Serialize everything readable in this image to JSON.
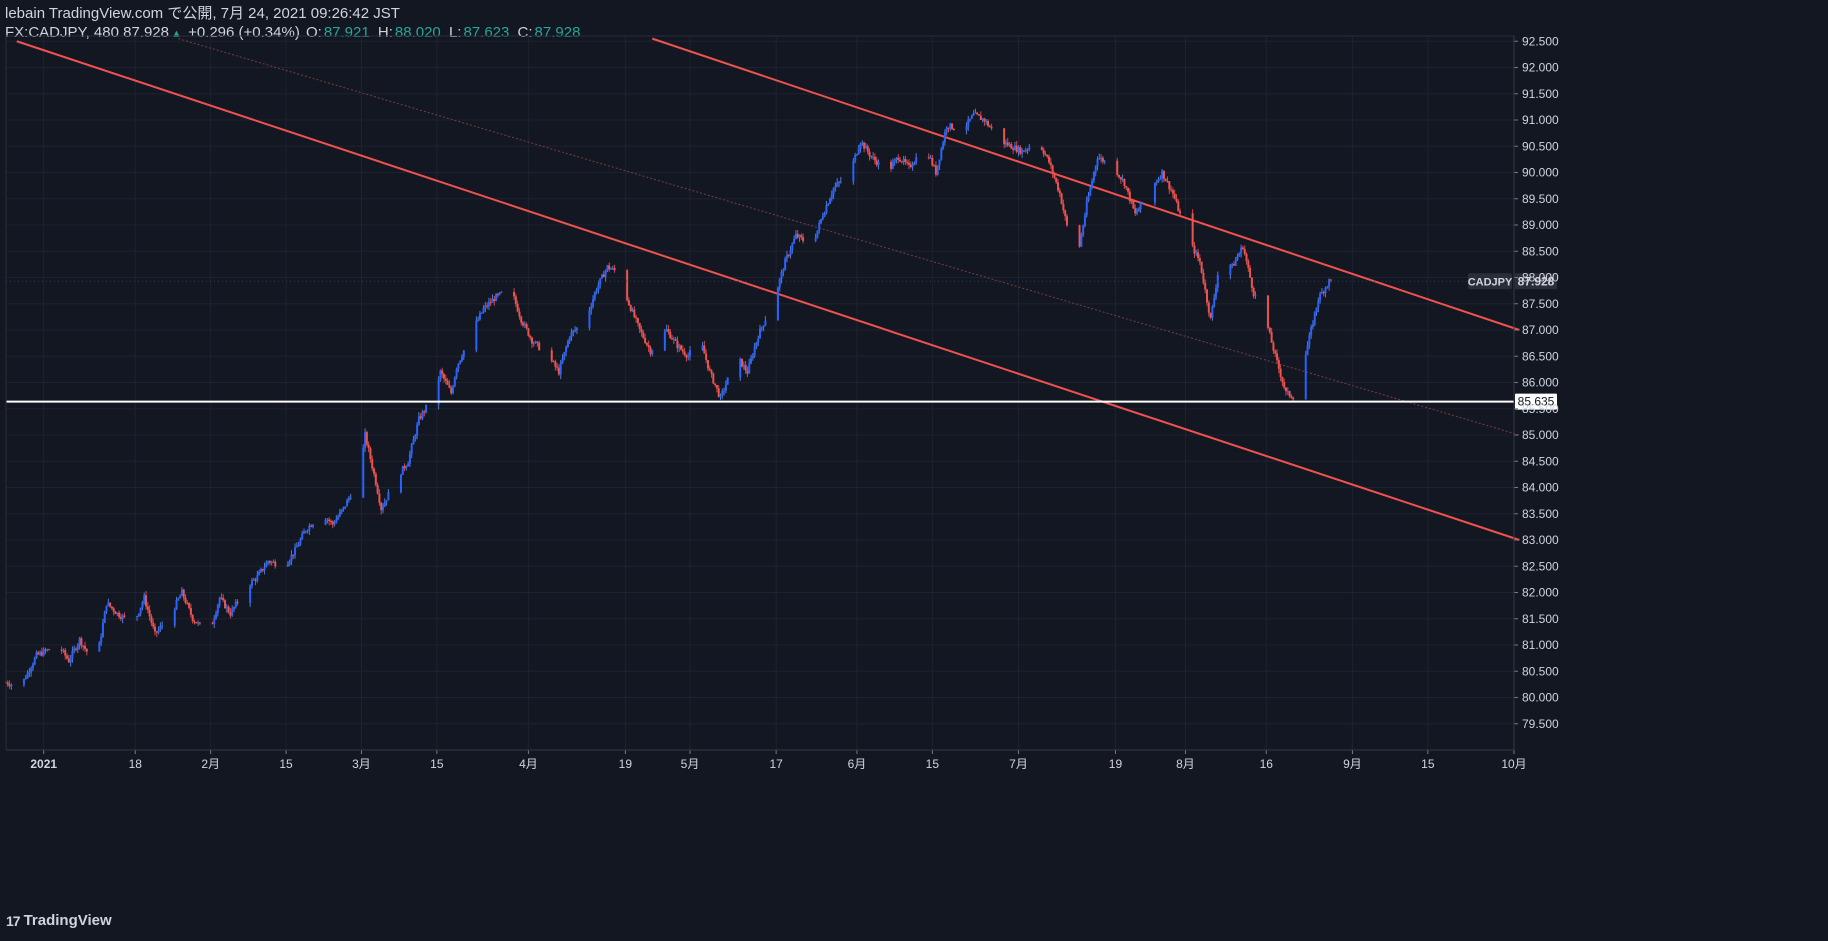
{
  "header": {
    "published_line": "lebain TradingView.com で公開, 7月 24, 2021 09:26:42 JST",
    "symbol_interval_price": "FX:CADJPY, 480 87.928",
    "change": "+0.296 (+0.34%)",
    "o_label": "O:",
    "o_value": "87.921",
    "h_label": "H:",
    "h_value": "88.020",
    "l_label": "L:",
    "l_value": "87.623",
    "c_label": "C:",
    "c_value": "87.928"
  },
  "footer": {
    "brand": "TradingView",
    "icon_text": "17"
  },
  "colors": {
    "background": "#131722",
    "up": "#2962ff",
    "up_wick": "#5b8def",
    "down": "#ef5350",
    "trendline": "#f0524f",
    "midline": "#7a3b45",
    "horizontal_line": "#ffffff",
    "grid": "#1e2230"
  },
  "chart_data": {
    "type": "candlestick",
    "symbol": "CADJPY",
    "interval": "480",
    "y_axis": {
      "range": [
        79.0,
        92.6
      ],
      "ticks": [
        "92.500",
        "92.000",
        "91.500",
        "91.000",
        "90.500",
        "90.000",
        "89.500",
        "89.000",
        "88.500",
        "88.000",
        "87.500",
        "87.000",
        "86.500",
        "86.000",
        "85.500",
        "85.000",
        "84.500",
        "84.000",
        "83.500",
        "83.000",
        "82.500",
        "82.000",
        "81.500",
        "81.000",
        "80.500",
        "80.000",
        "79.500"
      ]
    },
    "x_axis": {
      "range": [
        "2020-12-25",
        "2021-10-01"
      ],
      "ticks": [
        {
          "date": "2021-01-01",
          "label": "2021",
          "bold": true
        },
        {
          "date": "2021-01-18",
          "label": "18"
        },
        {
          "date": "2021-02-01",
          "label": "2月"
        },
        {
          "date": "2021-02-15",
          "label": "15"
        },
        {
          "date": "2021-03-01",
          "label": "3月"
        },
        {
          "date": "2021-03-15",
          "label": "15"
        },
        {
          "date": "2021-04-01",
          "label": "4月"
        },
        {
          "date": "2021-04-19",
          "label": "19"
        },
        {
          "date": "2021-05-01",
          "label": "5月"
        },
        {
          "date": "2021-05-17",
          "label": "17"
        },
        {
          "date": "2021-06-01",
          "label": "6月"
        },
        {
          "date": "2021-06-15",
          "label": "15"
        },
        {
          "date": "2021-07-01",
          "label": "7月"
        },
        {
          "date": "2021-07-19",
          "label": "19"
        },
        {
          "date": "2021-08-01",
          "label": "8月"
        },
        {
          "date": "2021-08-16",
          "label": "16"
        },
        {
          "date": "2021-09-01",
          "label": "9月"
        },
        {
          "date": "2021-09-15",
          "label": "15"
        },
        {
          "date": "2021-10-01",
          "label": "10月"
        }
      ]
    },
    "price_path": [
      [
        "2020-12-25",
        80.3
      ],
      [
        "2020-12-28",
        80.2
      ],
      [
        "2020-12-31",
        80.8
      ],
      [
        "2021-01-04",
        81.0
      ],
      [
        "2021-01-06",
        80.7
      ],
      [
        "2021-01-08",
        81.1
      ],
      [
        "2021-01-11",
        80.6
      ],
      [
        "2021-01-13",
        81.8
      ],
      [
        "2021-01-15",
        81.6
      ],
      [
        "2021-01-18",
        81.4
      ],
      [
        "2021-01-20",
        81.9
      ],
      [
        "2021-01-22",
        81.2
      ],
      [
        "2021-01-25",
        81.6
      ],
      [
        "2021-01-27",
        82.0
      ],
      [
        "2021-01-29",
        81.5
      ],
      [
        "2021-02-01",
        81.2
      ],
      [
        "2021-02-03",
        81.9
      ],
      [
        "2021-02-05",
        81.6
      ],
      [
        "2021-02-08",
        82.1
      ],
      [
        "2021-02-10",
        82.3
      ],
      [
        "2021-02-12",
        82.6
      ],
      [
        "2021-02-15",
        82.5
      ],
      [
        "2021-02-17",
        82.8
      ],
      [
        "2021-02-19",
        83.2
      ],
      [
        "2021-02-22",
        83.5
      ],
      [
        "2021-02-24",
        83.3
      ],
      [
        "2021-02-26",
        83.6
      ],
      [
        "2021-03-01",
        84.2
      ],
      [
        "2021-03-02",
        85.0
      ],
      [
        "2021-03-04",
        84.1
      ],
      [
        "2021-03-05",
        83.6
      ],
      [
        "2021-03-08",
        84.2
      ],
      [
        "2021-03-10",
        84.5
      ],
      [
        "2021-03-12",
        85.3
      ],
      [
        "2021-03-15",
        85.8
      ],
      [
        "2021-03-16",
        86.2
      ],
      [
        "2021-03-18",
        85.8
      ],
      [
        "2021-03-19",
        86.3
      ],
      [
        "2021-03-22",
        87.0
      ],
      [
        "2021-03-24",
        87.4
      ],
      [
        "2021-03-26",
        87.6
      ],
      [
        "2021-03-29",
        87.8
      ],
      [
        "2021-03-31",
        87.2
      ],
      [
        "2021-04-02",
        86.8
      ],
      [
        "2021-04-05",
        86.5
      ],
      [
        "2021-04-07",
        86.2
      ],
      [
        "2021-04-09",
        86.9
      ],
      [
        "2021-04-12",
        87.2
      ],
      [
        "2021-04-14",
        87.8
      ],
      [
        "2021-04-16",
        88.2
      ],
      [
        "2021-04-18",
        88.1
      ],
      [
        "2021-04-20",
        87.5
      ],
      [
        "2021-04-22",
        87.0
      ],
      [
        "2021-04-24",
        86.6
      ],
      [
        "2021-04-27",
        87.0
      ],
      [
        "2021-04-29",
        86.7
      ],
      [
        "2021-05-01",
        86.5
      ],
      [
        "2021-05-03",
        86.9
      ],
      [
        "2021-05-05",
        86.2
      ],
      [
        "2021-05-07",
        85.7
      ],
      [
        "2021-05-10",
        86.5
      ],
      [
        "2021-05-12",
        86.2
      ],
      [
        "2021-05-14",
        86.9
      ],
      [
        "2021-05-17",
        87.6
      ],
      [
        "2021-05-19",
        88.3
      ],
      [
        "2021-05-21",
        88.8
      ],
      [
        "2021-05-24",
        88.6
      ],
      [
        "2021-05-26",
        89.2
      ],
      [
        "2021-05-28",
        89.7
      ],
      [
        "2021-05-31",
        90.0
      ],
      [
        "2021-06-02",
        90.6
      ],
      [
        "2021-06-04",
        90.3
      ],
      [
        "2021-06-07",
        90.0
      ],
      [
        "2021-06-09",
        90.3
      ],
      [
        "2021-06-11",
        90.1
      ],
      [
        "2021-06-14",
        90.5
      ],
      [
        "2021-06-16",
        90.0
      ],
      [
        "2021-06-18",
        90.9
      ],
      [
        "2021-06-21",
        90.8
      ],
      [
        "2021-06-23",
        91.1
      ],
      [
        "2021-06-25",
        91.0
      ],
      [
        "2021-06-28",
        90.6
      ],
      [
        "2021-06-30",
        90.5
      ],
      [
        "2021-07-02",
        90.4
      ],
      [
        "2021-07-05",
        90.6
      ],
      [
        "2021-07-07",
        90.2
      ],
      [
        "2021-07-09",
        89.6
      ],
      [
        "2021-07-12",
        88.2
      ],
      [
        "2021-07-14",
        89.4
      ],
      [
        "2021-07-16",
        90.3
      ],
      [
        "2021-07-19",
        90.1
      ],
      [
        "2021-07-21",
        89.8
      ],
      [
        "2021-07-23",
        89.2
      ],
      [
        "2021-07-26",
        89.7
      ],
      [
        "2021-07-28",
        90.0
      ],
      [
        "2021-07-30",
        89.6
      ],
      [
        "2021-08-02",
        88.7
      ],
      [
        "2021-08-04",
        88.3
      ],
      [
        "2021-08-06",
        87.2
      ],
      [
        "2021-08-08",
        88.5
      ],
      [
        "2021-08-10",
        88.2
      ],
      [
        "2021-08-12",
        88.6
      ],
      [
        "2021-08-14",
        87.7
      ],
      [
        "2021-08-16",
        87.3
      ],
      [
        "2021-08-18",
        86.5
      ],
      [
        "2021-08-20",
        85.8
      ],
      [
        "2021-08-22",
        85.7
      ],
      [
        "2021-08-24",
        86.7
      ],
      [
        "2021-08-26",
        87.6
      ],
      [
        "2021-08-28",
        87.928
      ]
    ],
    "channel": {
      "upper": {
        "start": [
          "2021-04-24",
          92.55
        ],
        "end": [
          "2021-10-02",
          87.0
        ]
      },
      "lower": {
        "start": [
          "2020-12-27",
          92.5
        ],
        "end": [
          "2021-10-02",
          83.0
        ]
      },
      "mid": {
        "start": [
          "2021-01-26",
          92.55
        ],
        "end": [
          "2021-10-02",
          85.0
        ]
      }
    },
    "horizontal_line": {
      "price": 85.635,
      "label": "85.635"
    },
    "last_price": {
      "price": 87.928,
      "symbol_label": "CADJPY",
      "value_label": "87.928"
    }
  }
}
